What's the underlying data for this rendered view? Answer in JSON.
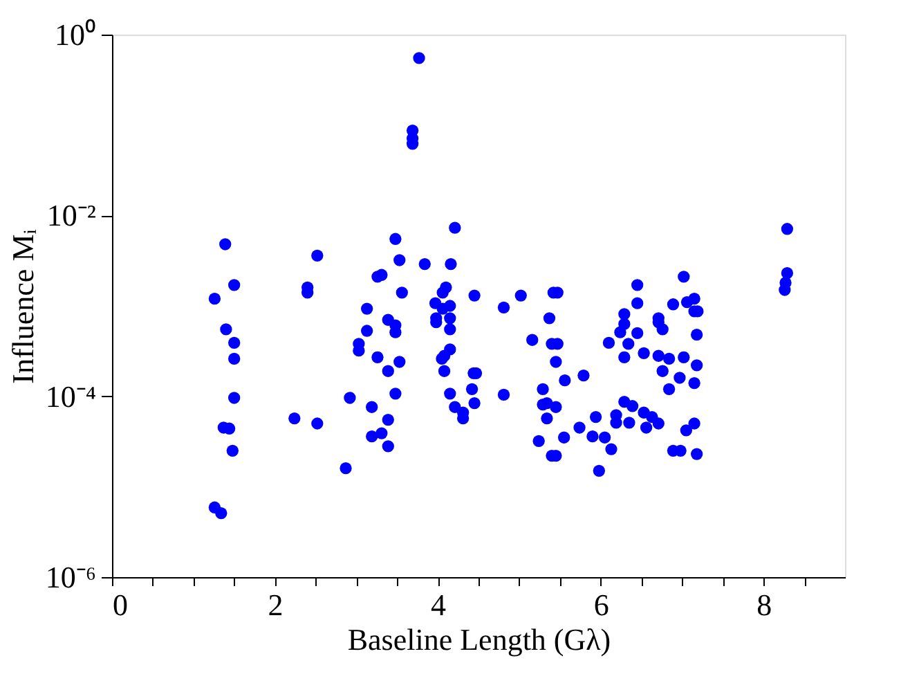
{
  "chart_data": {
    "type": "scatter",
    "xlabel": "Baseline Length (Gλ)",
    "ylabel": "Influence Mᵢ",
    "log": "y",
    "grid": false,
    "marker": "circle",
    "xlim": [
      0,
      9
    ],
    "ylim": [
      1e-06,
      1
    ],
    "xticks": [
      0,
      {
        "value": 0.5,
        "label": null
      },
      {
        "value": 1,
        "label": null
      },
      {
        "value": 1.5,
        "label": null
      },
      2,
      {
        "value": 2.5,
        "label": null
      },
      {
        "value": 3,
        "label": null
      },
      {
        "value": 3.5,
        "label": null
      },
      4,
      {
        "value": 4.5,
        "label": null
      },
      {
        "value": 5,
        "label": null
      },
      {
        "value": 5.5,
        "label": null
      },
      6,
      {
        "value": 6.5,
        "label": null
      },
      {
        "value": 7,
        "label": null
      },
      {
        "value": 7.5,
        "label": null
      },
      8,
      {
        "value": 8.5,
        "label": null
      }
    ],
    "yticks": [
      {
        "value": 1e-06,
        "label": "10⁻⁶"
      },
      {
        "value": 0.0001,
        "label": "10⁻⁴"
      },
      {
        "value": 0.01,
        "label": "10⁻²"
      },
      {
        "value": 1,
        "label": "10⁰"
      }
    ],
    "series": [
      {
        "color": "#0000ff",
        "x": [
          1.26,
          1.39,
          1.4,
          1.5,
          1.5,
          1.5,
          1.37,
          1.44,
          1.48,
          1.26,
          1.34,
          1.5,
          2.24,
          2.52,
          2.52,
          2.4,
          2.4,
          2.92,
          2.87,
          3.13,
          3.13,
          3.03,
          3.03,
          3.26,
          3.39,
          3.48,
          3.48,
          3.39,
          3.53,
          3.48,
          3.19,
          3.39,
          3.19,
          3.31,
          3.39,
          3.26,
          3.31,
          3.48,
          3.53,
          3.56,
          3.77,
          3.69,
          3.69,
          3.69,
          3.84,
          4.16,
          4.21,
          3.97,
          3.98,
          3.98,
          4.15,
          4.15,
          4.15,
          4.1,
          4.06,
          4.06,
          4.05,
          4.08,
          4.15,
          4.08,
          4.15,
          4.21,
          4.31,
          4.31,
          4.45,
          4.44,
          4.47,
          4.42,
          4.45,
          4.81,
          5.02,
          5.42,
          5.47,
          4.81,
          5.37,
          5.16,
          5.4,
          5.47,
          5.45,
          5.29,
          5.56,
          5.79,
          5.29,
          5.34,
          5.45,
          5.34,
          5.24,
          5.55,
          5.4,
          5.45,
          5.74,
          5.94,
          5.9,
          6.05,
          6.13,
          5.98,
          6.29,
          6.29,
          6.24,
          6.45,
          6.45,
          6.45,
          7.02,
          6.89,
          7.06,
          7.15,
          7.15,
          7.19,
          6.1,
          6.34,
          6.29,
          6.53,
          6.71,
          6.71,
          6.76,
          6.71,
          6.84,
          7.02,
          6.76,
          6.97,
          6.84,
          7.15,
          7.18,
          7.18,
          6.29,
          6.39,
          6.19,
          6.19,
          6.35,
          6.53,
          6.63,
          6.56,
          6.71,
          7.05,
          7.15,
          6.89,
          6.98,
          7.18,
          8.29,
          8.29,
          8.27,
          8.26
        ],
        "values": [
          0.0012,
          0.0048,
          0.00055,
          0.00039,
          0.00026,
          9.6e-05,
          4.5e-05,
          4.4e-05,
          2.5e-05,
          5.9e-06,
          5.1e-06,
          0.0017,
          5.7e-05,
          5e-05,
          0.0036,
          0.0016,
          0.0014,
          9.6e-05,
          1.6e-05,
          0.00093,
          0.00053,
          0.00038,
          0.00032,
          0.00027,
          0.0007,
          0.00061,
          0.00051,
          0.00019,
          0.00024,
          0.000107,
          7.6e-05,
          5.5e-05,
          3.6e-05,
          3.9e-05,
          2.8e-05,
          0.0021,
          0.0022,
          0.0055,
          0.0032,
          0.0014,
          0.55,
          0.087,
          0.071,
          0.062,
          0.0029,
          0.0029,
          0.0073,
          0.00107,
          0.00073,
          0.00066,
          0.001,
          0.00073,
          0.00055,
          0.0016,
          0.0014,
          0.00093,
          0.00026,
          0.00028,
          0.00033,
          0.00019,
          0.000107,
          7.6e-05,
          6.6e-05,
          5.7e-05,
          0.0013,
          0.00018,
          0.00018,
          0.00012,
          8.4e-05,
          0.00096,
          0.0013,
          0.0014,
          0.0014,
          0.000104,
          0.00073,
          0.00042,
          0.00038,
          0.00038,
          0.00024,
          0.00012,
          0.00015,
          0.00017,
          8.1e-05,
          8.4e-05,
          7.6e-05,
          5.7e-05,
          3.2e-05,
          3.5e-05,
          2.2e-05,
          2.2e-05,
          4.5e-05,
          5.9e-05,
          3.6e-05,
          3.5e-05,
          2.6e-05,
          1.5e-05,
          0.00081,
          0.00063,
          0.00051,
          0.00107,
          0.0017,
          0.0005,
          0.0021,
          0.00104,
          0.0011,
          0.0012,
          0.00087,
          0.00087,
          0.00039,
          0.00038,
          0.00027,
          0.0003,
          0.00073,
          0.00066,
          0.00055,
          0.00028,
          0.00026,
          0.00027,
          0.00019,
          0.00016,
          0.00012,
          0.00014,
          0.00048,
          0.00022,
          8.7e-05,
          7.8e-05,
          6.2e-05,
          5.1e-05,
          5.1e-05,
          6.6e-05,
          5.9e-05,
          4.5e-05,
          5e-05,
          4.2e-05,
          5e-05,
          2.5e-05,
          2.5e-05,
          2.3e-05,
          0.0071,
          0.0023,
          0.0018,
          0.0015
        ]
      }
    ]
  }
}
